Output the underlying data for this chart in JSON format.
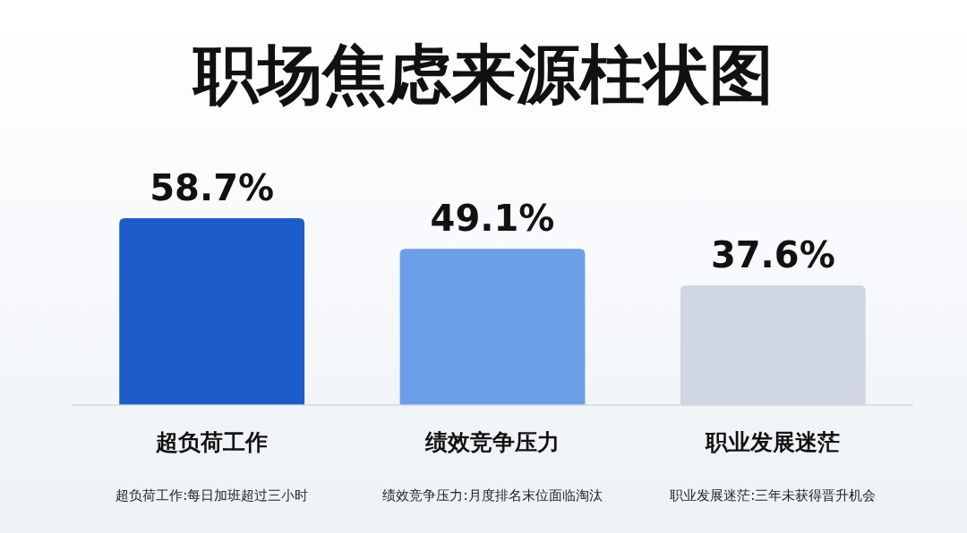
{
  "chart_data": {
    "type": "bar",
    "title": "职场焦虑来源柱状图",
    "categories": [
      "超负荷工作",
      "绩效竞争压力",
      "职业发展迷茫"
    ],
    "values": [
      58.7,
      49.1,
      37.6
    ],
    "colors": [
      "#1b5cc9",
      "#6b9fe8",
      "#cfd6e1"
    ],
    "value_labels": [
      "58.7%",
      "49.1%",
      "37.6%"
    ],
    "annotations": [
      "超负荷工作:每日加班超过三小时",
      "绩效竞争压力:月度排名末位面临淘汰",
      "职业发展迷茫:三年未获得晋升机会"
    ]
  }
}
